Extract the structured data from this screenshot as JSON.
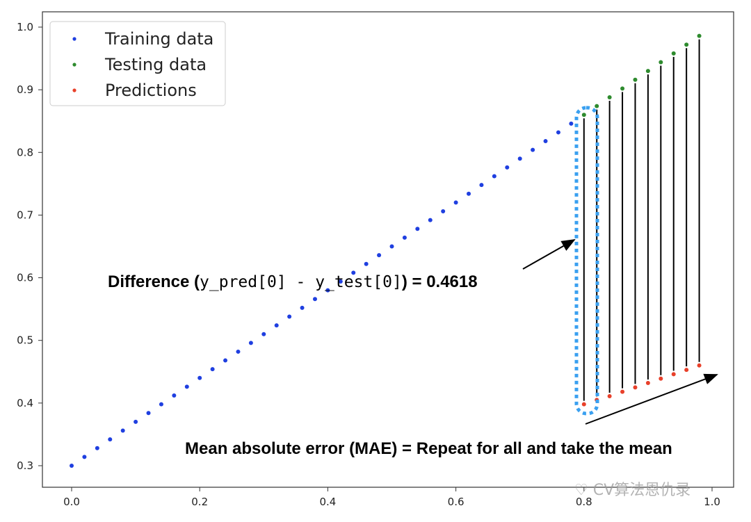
{
  "chart_data": {
    "type": "scatter",
    "xlim": [
      -0.05,
      1.0
    ],
    "ylim": [
      0.28,
      1.01
    ],
    "x_ticks": [
      "0.0",
      "0.2",
      "0.4",
      "0.6",
      "0.8",
      "1.0"
    ],
    "x_tick_values": [
      0.0,
      0.2,
      0.4,
      0.6,
      0.8,
      1.0
    ],
    "y_ticks": [
      "0.3",
      "0.4",
      "0.5",
      "0.6",
      "0.7",
      "0.8",
      "0.9",
      "1.0"
    ],
    "y_tick_values": [
      0.3,
      0.4,
      0.5,
      0.6,
      0.7,
      0.8,
      0.9,
      1.0
    ],
    "grid": false,
    "legend_position": "top-left",
    "series": [
      {
        "name": "Training data",
        "color": "#1f3fe0",
        "x": [
          0.0,
          0.02,
          0.04,
          0.06,
          0.08,
          0.1,
          0.12,
          0.14,
          0.16,
          0.18,
          0.2,
          0.22,
          0.24,
          0.26,
          0.28,
          0.3,
          0.32,
          0.34,
          0.36,
          0.38,
          0.4,
          0.42,
          0.44,
          0.46,
          0.48,
          0.5,
          0.52,
          0.54,
          0.56,
          0.58,
          0.6,
          0.62,
          0.64,
          0.66,
          0.68,
          0.7,
          0.72,
          0.74,
          0.76,
          0.78
        ],
        "y": [
          0.3,
          0.314,
          0.328,
          0.342,
          0.356,
          0.37,
          0.384,
          0.398,
          0.412,
          0.426,
          0.44,
          0.454,
          0.468,
          0.482,
          0.496,
          0.51,
          0.524,
          0.538,
          0.552,
          0.566,
          0.58,
          0.594,
          0.608,
          0.622,
          0.636,
          0.65,
          0.664,
          0.678,
          0.692,
          0.706,
          0.72,
          0.734,
          0.748,
          0.762,
          0.776,
          0.79,
          0.804,
          0.818,
          0.832,
          0.846
        ]
      },
      {
        "name": "Testing data",
        "color": "#2e8b2e",
        "x": [
          0.8,
          0.82,
          0.84,
          0.86,
          0.88,
          0.9,
          0.92,
          0.94,
          0.96,
          0.98
        ],
        "y": [
          0.86,
          0.874,
          0.888,
          0.902,
          0.916,
          0.93,
          0.944,
          0.958,
          0.972,
          0.986
        ]
      },
      {
        "name": "Predictions",
        "color": "#e8402a",
        "x": [
          0.8,
          0.82,
          0.84,
          0.86,
          0.88,
          0.9,
          0.92,
          0.94,
          0.96,
          0.98
        ],
        "y": [
          0.398,
          0.405,
          0.411,
          0.418,
          0.425,
          0.432,
          0.439,
          0.446,
          0.453,
          0.46
        ]
      }
    ],
    "annotations": {
      "difference_prefix": "Difference (",
      "difference_code": "y_pred[0] - y_test[0]",
      "difference_suffix": ") = 0.4618",
      "mae": "Mean absolute error (MAE) = Repeat for all and take the mean",
      "highlight_color": "#3aa0f0",
      "connector_color": "#000000"
    },
    "watermark": "CV算法恩仇录"
  }
}
